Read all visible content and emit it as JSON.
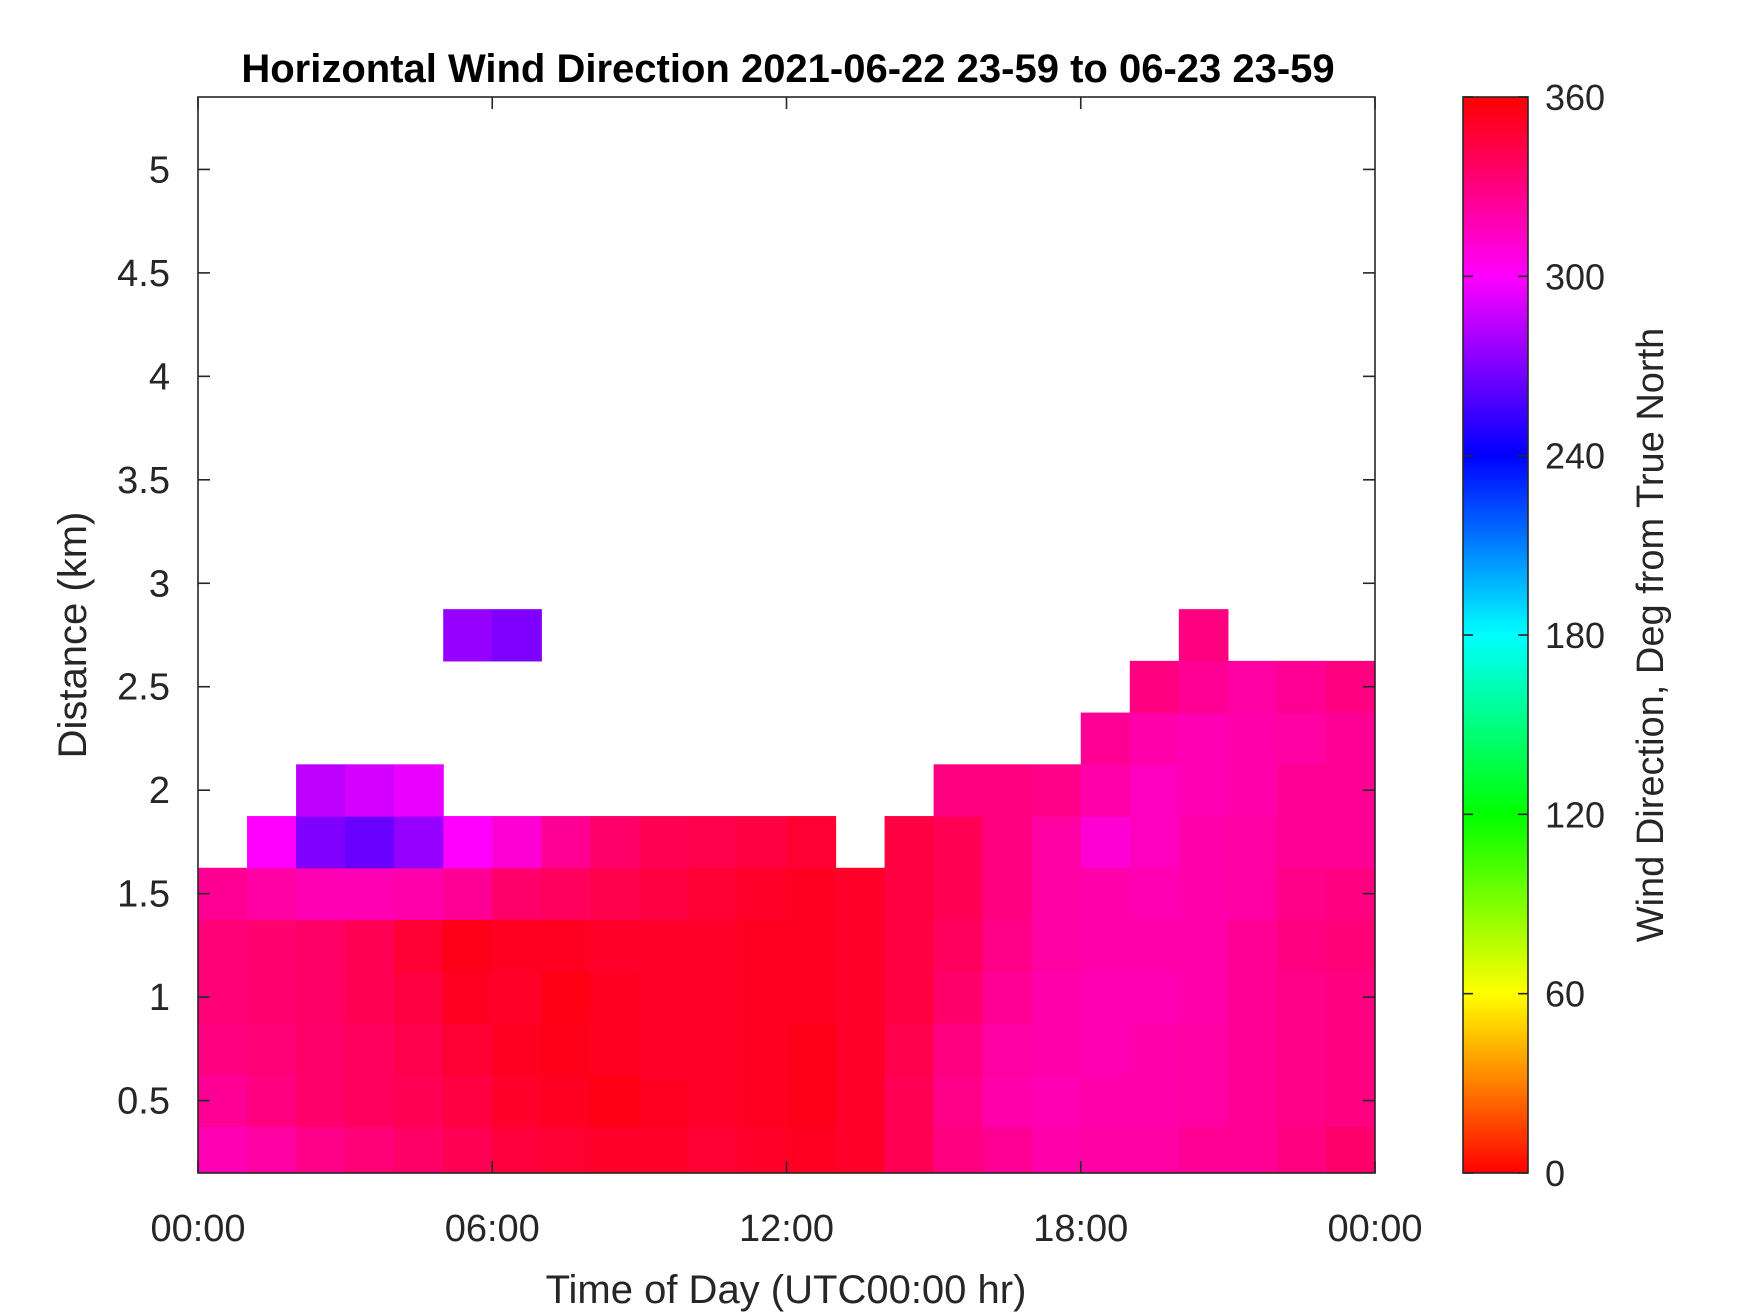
{
  "chart_data": {
    "type": "heatmap",
    "title": "Horizontal Wind Direction 2021-06-22 23-59 to 06-23 23-59",
    "xlabel": "Time of Day (UTC00:00 hr)",
    "ylabel": "Distance (km)",
    "x_ticks": [
      "00:00",
      "06:00",
      "12:00",
      "18:00",
      "00:00"
    ],
    "y_ticks": [
      "0.5",
      "1",
      "1.5",
      "2",
      "2.5",
      "3",
      "3.5",
      "4",
      "4.5",
      "5"
    ],
    "xlim_hours": [
      0,
      24
    ],
    "ylim_km": [
      0.15,
      5.35
    ],
    "colorbar": {
      "label": "Wind Direction, Deg from True North",
      "ticks": [
        "0",
        "60",
        "120",
        "180",
        "240",
        "300",
        "360"
      ],
      "range": [
        0,
        360
      ],
      "colormap": "hsv"
    },
    "x_hours": [
      0.5,
      1.5,
      2.5,
      3.5,
      4.5,
      5.5,
      6.5,
      7.5,
      8.5,
      9.5,
      10.5,
      11.5,
      12.5,
      13.5,
      14.5,
      15.5,
      16.5,
      17.5,
      18.5,
      19.5,
      20.5,
      21.5,
      22.5,
      23.5
    ],
    "y_km": [
      0.25,
      0.5,
      0.75,
      1.0,
      1.25,
      1.5,
      1.75,
      2.0,
      2.25,
      2.5,
      2.75
    ],
    "direction_deg": [
      [
        318,
        322,
        328,
        332,
        336,
        340,
        346,
        348,
        350,
        350,
        348,
        350,
        352,
        350,
        340,
        330,
        325,
        320,
        322,
        322,
        325,
        325,
        330,
        335
      ],
      [
        325,
        330,
        335,
        338,
        340,
        345,
        350,
        352,
        355,
        352,
        350,
        352,
        354,
        350,
        340,
        328,
        320,
        318,
        320,
        320,
        322,
        325,
        328,
        330
      ],
      [
        330,
        332,
        335,
        338,
        342,
        348,
        352,
        354,
        352,
        350,
        350,
        352,
        354,
        350,
        342,
        330,
        322,
        320,
        318,
        320,
        322,
        325,
        328,
        330
      ],
      [
        332,
        334,
        336,
        340,
        345,
        352,
        350,
        355,
        352,
        350,
        350,
        352,
        352,
        350,
        345,
        335,
        325,
        320,
        318,
        318,
        320,
        325,
        328,
        330
      ],
      [
        332,
        334,
        336,
        340,
        348,
        354,
        352,
        352,
        350,
        350,
        350,
        352,
        352,
        350,
        345,
        338,
        328,
        322,
        320,
        320,
        320,
        325,
        330,
        332
      ],
      [
        325,
        322,
        318,
        318,
        320,
        325,
        335,
        338,
        342,
        345,
        348,
        350,
        352,
        350,
        345,
        340,
        330,
        322,
        320,
        318,
        320,
        322,
        328,
        330
      ],
      [
        null,
        300,
        270,
        265,
        275,
        300,
        310,
        325,
        335,
        340,
        342,
        345,
        348,
        null,
        345,
        340,
        330,
        322,
        310,
        315,
        320,
        322,
        325,
        325
      ],
      [
        null,
        null,
        285,
        290,
        295,
        null,
        null,
        null,
        null,
        null,
        null,
        null,
        null,
        null,
        null,
        330,
        330,
        328,
        320,
        315,
        318,
        320,
        325,
        325
      ],
      [
        null,
        null,
        null,
        null,
        null,
        null,
        null,
        null,
        null,
        null,
        null,
        null,
        null,
        null,
        null,
        null,
        null,
        null,
        325,
        320,
        318,
        320,
        322,
        325
      ],
      [
        null,
        null,
        null,
        null,
        null,
        null,
        null,
        null,
        null,
        null,
        null,
        null,
        null,
        null,
        null,
        null,
        null,
        null,
        null,
        330,
        325,
        322,
        325,
        330
      ],
      [
        null,
        null,
        null,
        null,
        null,
        275,
        270,
        null,
        null,
        null,
        null,
        null,
        null,
        null,
        null,
        null,
        null,
        null,
        null,
        null,
        330,
        null,
        null,
        null
      ]
    ]
  }
}
